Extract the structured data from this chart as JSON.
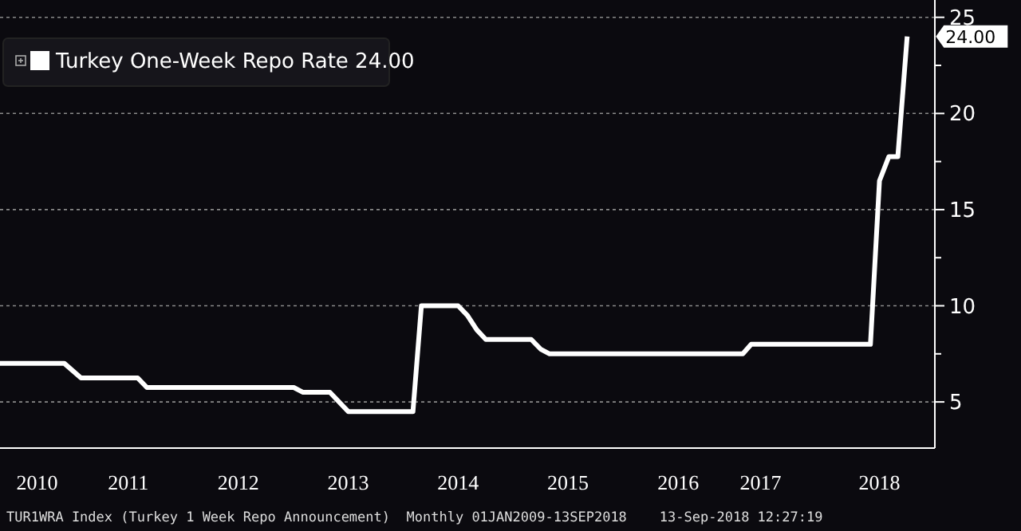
{
  "chart_data": {
    "type": "line",
    "x": [
      "2010-05",
      "2010-12",
      "2011-01-25",
      "2011-08",
      "2011-09",
      "2013-01",
      "2013-02",
      "2013-05",
      "2013-07",
      "2014-02",
      "2014-03",
      "2014-07",
      "2014-08",
      "2014-09",
      "2014-10",
      "2015-03",
      "2015-04",
      "2015-05",
      "2017-02",
      "2017-03",
      "2018-04",
      "2018-05",
      "2018-06",
      "2018-07",
      "2018-08"
    ],
    "series": [
      {
        "name": "Turkey One-Week Repo Rate 24.00",
        "color": "#ffffff",
        "values": [
          7,
          7,
          6.25,
          6.25,
          5.75,
          5.75,
          5.5,
          5.5,
          4.5,
          4.5,
          10,
          10,
          9.5,
          8.75,
          8.25,
          8.25,
          7.75,
          7.5,
          7.5,
          8,
          8,
          16.5,
          17.75,
          17.75,
          24
        ]
      }
    ],
    "xlim": [
      "2010-05",
      "2018-11"
    ],
    "xticks": [
      {
        "value": "2010-09",
        "label": "2010"
      },
      {
        "value": "2011-07",
        "label": "2011"
      },
      {
        "value": "2012-07",
        "label": "2012"
      },
      {
        "value": "2013-07",
        "label": "2013"
      },
      {
        "value": "2014-07",
        "label": "2014"
      },
      {
        "value": "2015-07",
        "label": "2015"
      },
      {
        "value": "2016-07",
        "label": "2016"
      },
      {
        "value": "2017-04",
        "label": "2017"
      },
      {
        "value": "2018-05",
        "label": "2018"
      }
    ],
    "ylim": [
      2.6,
      25.9
    ],
    "yticks": [
      5,
      {
        "value": 7.5,
        "label": null
      },
      10,
      {
        "value": 12.5,
        "label": null
      },
      15,
      {
        "value": 17.5,
        "label": null
      },
      20,
      {
        "value": 22.5,
        "label": null
      },
      25
    ],
    "grid": "y",
    "legend": "top left",
    "marker": "none",
    "line_style": "solid",
    "annotations": [
      {
        "text": "24.00",
        "x": "2018-08",
        "y": 24
      },
      "TUR1WRA Index (Turkey 1 Week Repo Announcement)  Monthly 01JAN2009-13SEP2018    13-Sep-2018 12:27:19"
    ]
  }
}
